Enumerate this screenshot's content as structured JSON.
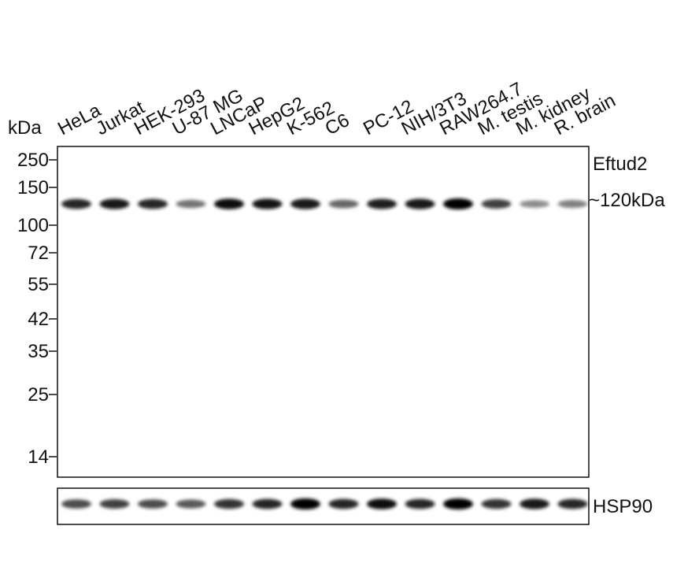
{
  "lanes": [
    "HeLa",
    "Jurkat",
    "HEK-293",
    "U-87 MG",
    "LNCaP",
    "HepG2",
    "K-562",
    "C6",
    "PC-12",
    "NIH/3T3",
    "RAW264.7",
    "M. testis",
    "M. kidney",
    "R. brain"
  ],
  "marker_unit": "kDa",
  "markers": [
    "250",
    "150",
    "100",
    "72",
    "55",
    "42",
    "35",
    "25",
    "14"
  ],
  "target": "Eftud2",
  "band_size": "~120kDa",
  "loading_control": "HSP90"
}
